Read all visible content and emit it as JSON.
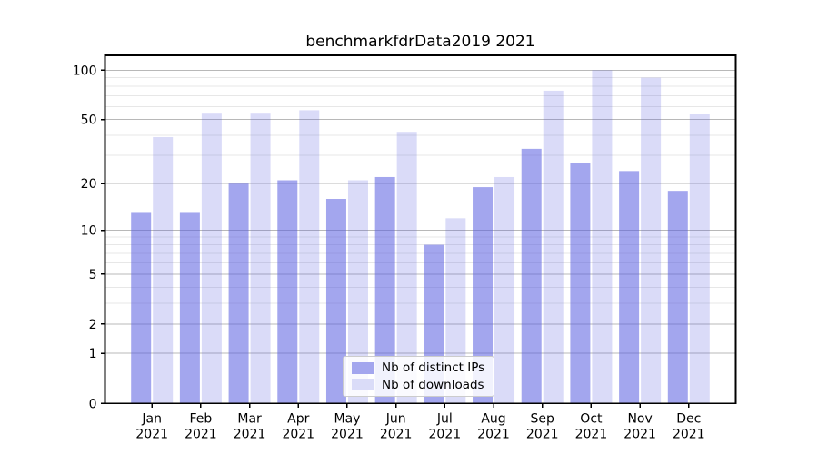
{
  "title": "benchmarkfdrData2019 2021",
  "chart_data": {
    "type": "bar",
    "title": "benchmarkfdrData2019 2021",
    "categories": [
      "Jan",
      "Feb",
      "Mar",
      "Apr",
      "May",
      "Jun",
      "Jul",
      "Aug",
      "Sep",
      "Oct",
      "Nov",
      "Dec"
    ],
    "year": "2021",
    "series": [
      {
        "name": "Nb of distinct IPs",
        "base_color": "#585ce0",
        "opacity": 0.55,
        "flat_color": "#a3a6ee",
        "values": [
          13,
          13,
          20,
          21,
          16,
          22,
          8,
          19,
          33,
          27,
          24,
          18
        ]
      },
      {
        "name": "Nb of downloads",
        "base_color": "#585ce0",
        "opacity": 0.22,
        "flat_color": "#dadcf8",
        "values": [
          39,
          55,
          55,
          57,
          21,
          42,
          12,
          22,
          75,
          100,
          90,
          54
        ]
      }
    ],
    "yscale": "log10(value+1)",
    "yticks": [
      0,
      1,
      2,
      5,
      10,
      20,
      50,
      100
    ],
    "yminorticks": [
      3,
      4,
      6,
      7,
      8,
      9,
      30,
      40,
      60,
      70,
      80,
      90
    ],
    "ylim": [
      0,
      123
    ],
    "grid": "on",
    "legend_position": "lower center",
    "colors": {
      "major_grid": "#b8b8b8",
      "minor_grid": "#e7e7e7",
      "spine": "#000000",
      "text": "#000000"
    }
  }
}
